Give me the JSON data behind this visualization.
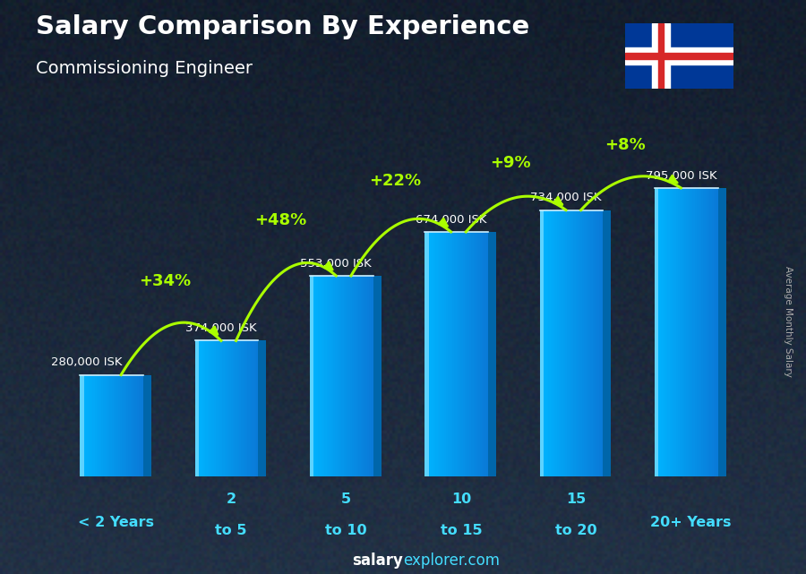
{
  "title": "Salary Comparison By Experience",
  "subtitle": "Commissioning Engineer",
  "categories": [
    "< 2 Years",
    "2 to 5",
    "5 to 10",
    "10 to 15",
    "15 to 20",
    "20+ Years"
  ],
  "values": [
    280000,
    374000,
    553000,
    674000,
    734000,
    795000
  ],
  "labels": [
    "280,000 ISK",
    "374,000 ISK",
    "553,000 ISK",
    "674,000 ISK",
    "734,000 ISK",
    "795,000 ISK"
  ],
  "pct_changes": [
    "+34%",
    "+48%",
    "+22%",
    "+9%",
    "+8%"
  ],
  "bar_face_color": "#00bfff",
  "bar_side_color": "#0066aa",
  "bar_top_color": "#66ddff",
  "bg_dark": "#1c2333",
  "bg_mid": "#2a3a4a",
  "title_color": "#ffffff",
  "subtitle_color": "#ffffff",
  "label_color": "#ffffff",
  "pct_color": "#aaff00",
  "xcat_color": "#44ddff",
  "footer_salary_color": "#ffffff",
  "footer_explorer_color": "#44ddff",
  "ylabel_text": "Average Monthly Salary",
  "ylabel_color": "#aaaaaa",
  "footer_bold": "salary",
  "footer_normal": "explorer.com"
}
